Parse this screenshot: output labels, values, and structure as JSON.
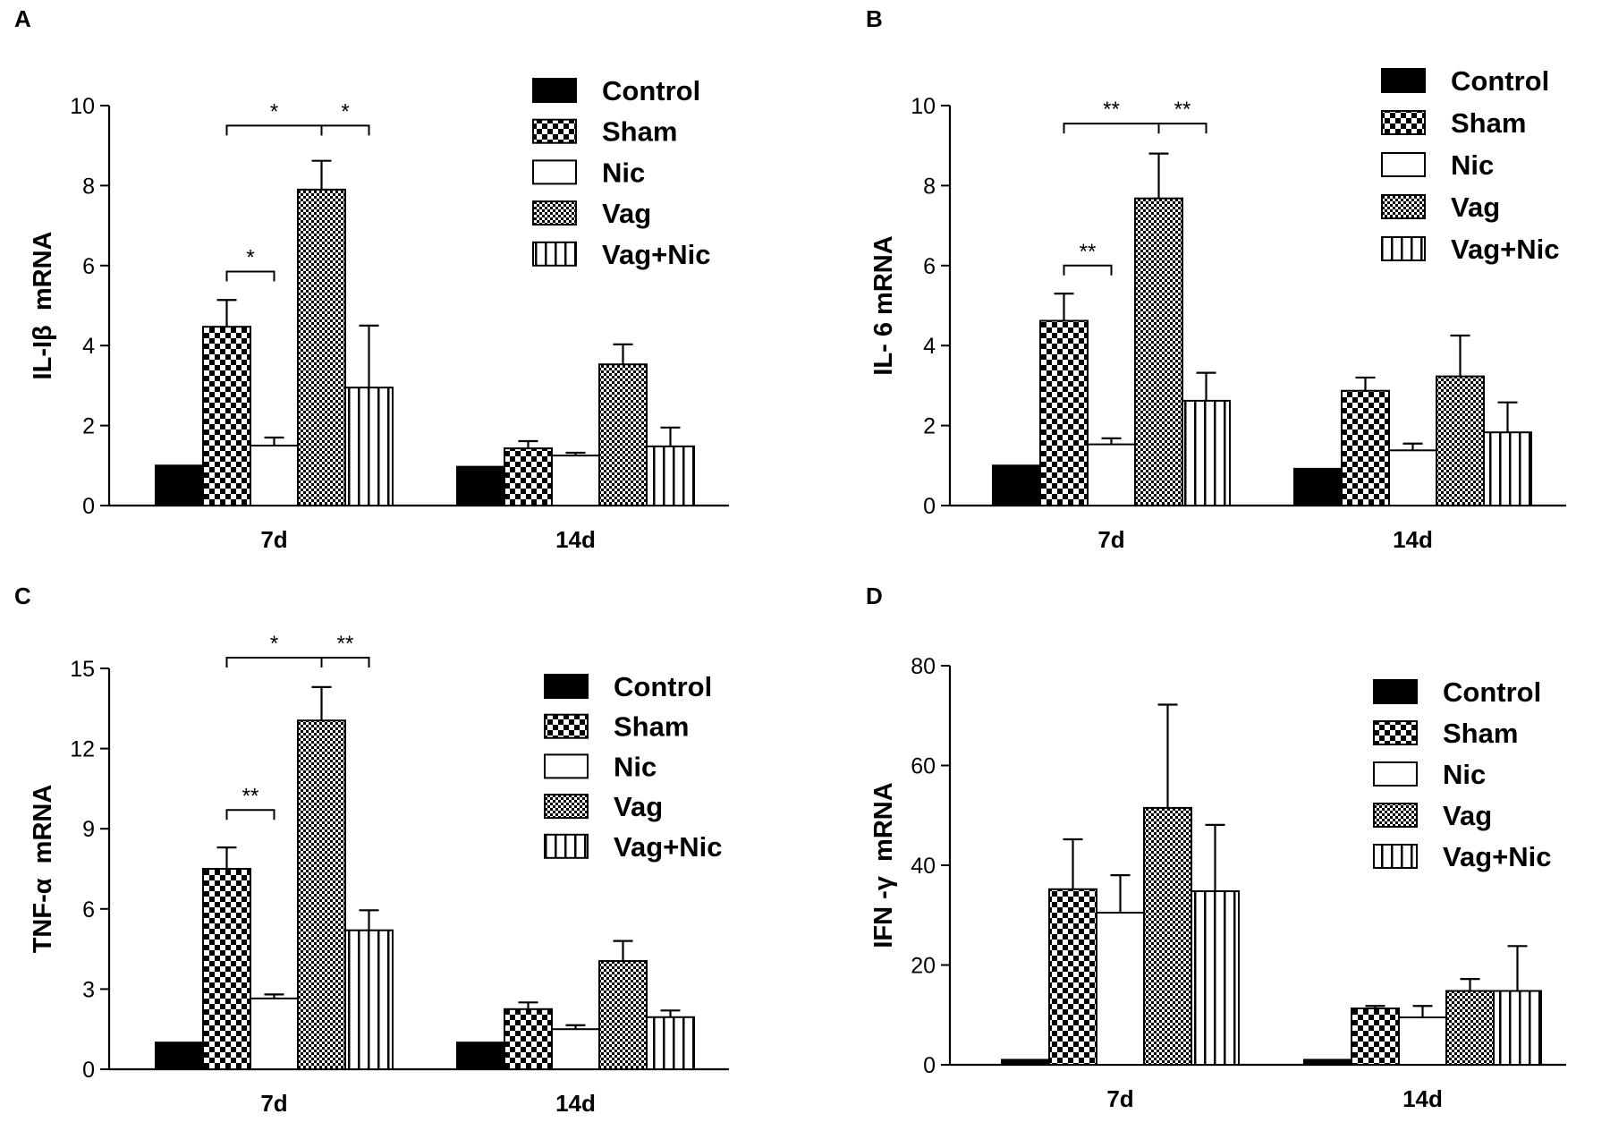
{
  "chart_data": [
    {
      "panel": "A",
      "type": "bar",
      "ylabel": "IL-Iβ  mRNA",
      "xlabel": "",
      "ylim": [
        0,
        10
      ],
      "yticks": [
        0,
        2,
        4,
        6,
        8,
        10
      ],
      "categories": [
        "7d",
        "14d"
      ],
      "series": [
        {
          "name": "Control",
          "pattern": "solid",
          "values": [
            1.0,
            0.97
          ],
          "errors": [
            0,
            0
          ]
        },
        {
          "name": "Sham",
          "pattern": "checker",
          "values": [
            4.47,
            1.43
          ],
          "errors": [
            0.67,
            0.18
          ]
        },
        {
          "name": "Nic",
          "pattern": "open",
          "values": [
            1.5,
            1.25
          ],
          "errors": [
            0.2,
            0.07
          ]
        },
        {
          "name": "Vag",
          "pattern": "fine-check",
          "values": [
            7.9,
            3.53
          ],
          "errors": [
            0.72,
            0.5
          ]
        },
        {
          "name": "Vag+Nic",
          "pattern": "vertical-lines",
          "values": [
            2.95,
            1.48
          ],
          "errors": [
            1.55,
            0.47
          ]
        }
      ],
      "significance": [
        {
          "group": 0,
          "from": 1,
          "to": 2,
          "label": "*",
          "level": 5.85
        },
        {
          "group": 0,
          "from": 1,
          "to": 3,
          "label": "*",
          "level": 9.5
        },
        {
          "group": 0,
          "from": 3,
          "to": 4,
          "label": "*",
          "level": 9.5
        }
      ]
    },
    {
      "panel": "B",
      "type": "bar",
      "ylabel": "IL- 6 mRNA",
      "xlabel": "",
      "ylim": [
        0,
        10
      ],
      "yticks": [
        0,
        2,
        4,
        6,
        8,
        10
      ],
      "categories": [
        "7d",
        "14d"
      ],
      "series": [
        {
          "name": "Control",
          "pattern": "solid",
          "values": [
            1.0,
            0.92
          ],
          "errors": [
            0,
            0
          ]
        },
        {
          "name": "Sham",
          "pattern": "checker",
          "values": [
            4.62,
            2.87
          ],
          "errors": [
            0.68,
            0.33
          ]
        },
        {
          "name": "Nic",
          "pattern": "open",
          "values": [
            1.53,
            1.38
          ],
          "errors": [
            0.15,
            0.17
          ]
        },
        {
          "name": "Vag",
          "pattern": "fine-check",
          "values": [
            7.68,
            3.23
          ],
          "errors": [
            1.12,
            1.02
          ]
        },
        {
          "name": "Vag+Nic",
          "pattern": "vertical-lines",
          "values": [
            2.62,
            1.83
          ],
          "errors": [
            0.7,
            0.75
          ]
        }
      ],
      "significance": [
        {
          "group": 0,
          "from": 1,
          "to": 2,
          "label": "**",
          "level": 6.0
        },
        {
          "group": 0,
          "from": 1,
          "to": 3,
          "label": "**",
          "level": 9.55
        },
        {
          "group": 0,
          "from": 3,
          "to": 4,
          "label": "**",
          "level": 9.55
        }
      ]
    },
    {
      "panel": "C",
      "type": "bar",
      "ylabel": "TNF-α  mRNA",
      "xlabel": "",
      "ylim": [
        0,
        15
      ],
      "yticks": [
        0,
        3,
        6,
        9,
        12,
        15
      ],
      "categories": [
        "7d",
        "14d"
      ],
      "series": [
        {
          "name": "Control",
          "pattern": "solid",
          "values": [
            1.0,
            1.0
          ],
          "errors": [
            0,
            0
          ]
        },
        {
          "name": "Sham",
          "pattern": "checker",
          "values": [
            7.5,
            2.25
          ],
          "errors": [
            0.8,
            0.25
          ]
        },
        {
          "name": "Nic",
          "pattern": "open",
          "values": [
            2.65,
            1.5
          ],
          "errors": [
            0.15,
            0.15
          ]
        },
        {
          "name": "Vag",
          "pattern": "fine-check",
          "values": [
            13.05,
            4.05
          ],
          "errors": [
            1.25,
            0.75
          ]
        },
        {
          "name": "Vag+Nic",
          "pattern": "vertical-lines",
          "values": [
            5.2,
            1.95
          ],
          "errors": [
            0.75,
            0.25
          ]
        }
      ],
      "significance": [
        {
          "group": 0,
          "from": 1,
          "to": 2,
          "label": "**",
          "level": 9.7
        },
        {
          "group": 0,
          "from": 1,
          "to": 3,
          "label": "*",
          "level": 15.4
        },
        {
          "group": 0,
          "from": 3,
          "to": 4,
          "label": "**",
          "level": 15.4
        }
      ]
    },
    {
      "panel": "D",
      "type": "bar",
      "ylabel": "IFN -γ  mRNA",
      "xlabel": "",
      "ylim": [
        0,
        80
      ],
      "yticks": [
        0,
        20,
        40,
        60,
        80
      ],
      "categories": [
        "7d",
        "14d"
      ],
      "series": [
        {
          "name": "Control",
          "pattern": "solid",
          "values": [
            1.0,
            1.0
          ],
          "errors": [
            0,
            0
          ]
        },
        {
          "name": "Sham",
          "pattern": "checker",
          "values": [
            35.2,
            11.3
          ],
          "errors": [
            10.0,
            0.5
          ]
        },
        {
          "name": "Nic",
          "pattern": "open",
          "values": [
            30.5,
            9.5
          ],
          "errors": [
            7.5,
            2.3
          ]
        },
        {
          "name": "Vag",
          "pattern": "fine-check",
          "values": [
            51.5,
            14.8
          ],
          "errors": [
            20.7,
            2.4
          ]
        },
        {
          "name": "Vag+Nic",
          "pattern": "vertical-lines",
          "values": [
            34.8,
            14.8
          ],
          "errors": [
            13.3,
            9.0
          ]
        }
      ],
      "significance": []
    }
  ]
}
